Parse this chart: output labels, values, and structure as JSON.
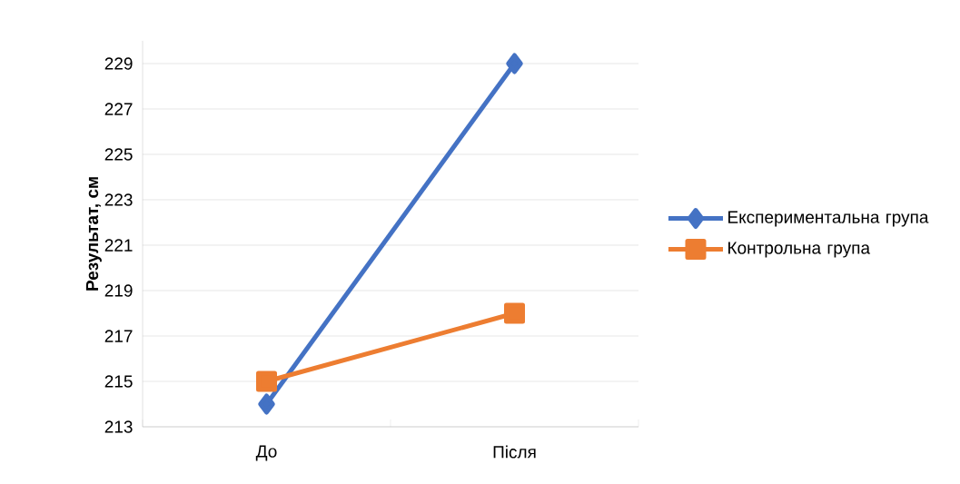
{
  "chart_data": {
    "type": "line",
    "ylabel": "Результат, см",
    "categories": [
      "До",
      "Після"
    ],
    "series": [
      {
        "name": "Експериментальна група",
        "color": "#4472c4",
        "values": [
          214,
          229
        ],
        "marker": "diamond"
      },
      {
        "name": "Контрольна група",
        "color": "#ed7d31",
        "values": [
          215,
          218
        ],
        "marker": "square"
      }
    ],
    "ylim": [
      213,
      230
    ],
    "yticks": [
      213,
      215,
      217,
      219,
      221,
      223,
      225,
      227,
      229
    ],
    "grid": "y",
    "legend": "right",
    "line_style": "solid"
  }
}
